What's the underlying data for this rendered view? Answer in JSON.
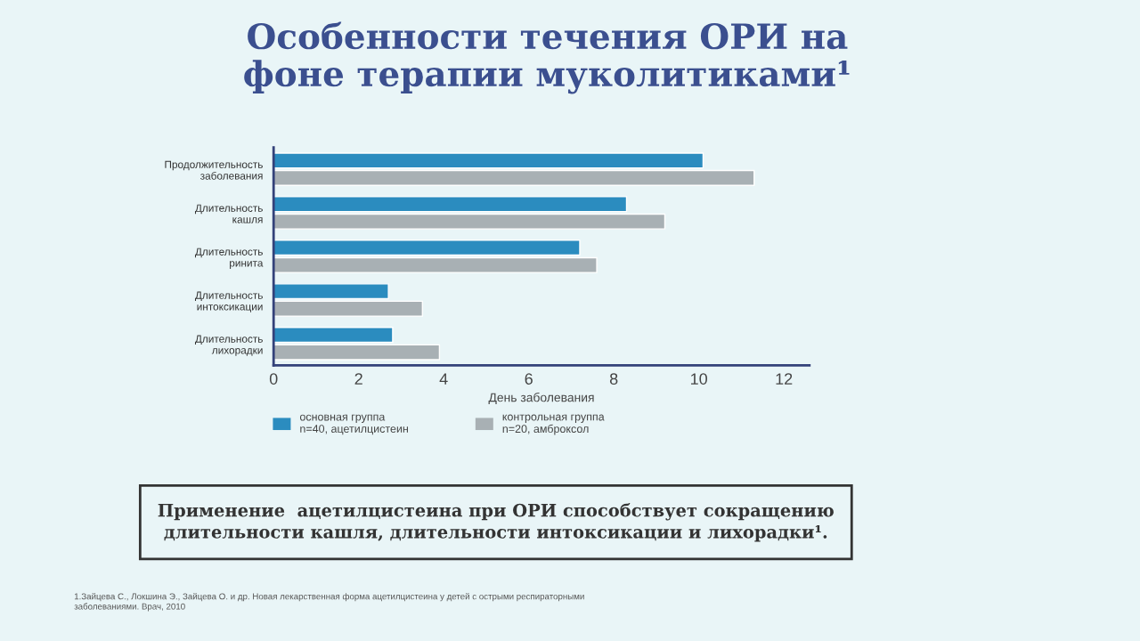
{
  "chart_data": {
    "type": "bar",
    "orientation": "horizontal",
    "title": "Особенности течения ОРИ на\nфоне терапии муколитиками¹",
    "categories": [
      "Продолжительность\nзаболевания",
      "Длительность\nкашля",
      "Длительность\nринита",
      "Длительность\nинтоксикации",
      "Длительность\nлихорадки"
    ],
    "series": [
      {
        "name": "основная группа\nn=40, ацетилцистеин",
        "color": "#2b8cbf",
        "values": [
          10.1,
          8.3,
          7.2,
          2.7,
          2.8
        ]
      },
      {
        "name": "контрольная группа\nn=20, амброксол",
        "color": "#a8b0b4",
        "values": [
          11.3,
          9.2,
          7.6,
          3.5,
          3.9
        ]
      }
    ],
    "xlabel": "День заболевания",
    "xlim": [
      0,
      12.6
    ],
    "xticks": [
      0,
      2,
      4,
      6,
      8,
      10,
      12
    ],
    "legend": "bottom",
    "annotations": [
      "Применение  ацетилцистеина при ОРИ способствует сокращению\nдлительности кашля, длительности интоксикации и лихорадки¹.",
      "1.Зайцева С., Локшина Э., Зайцева О. и др. Новая лекарственная форма ацетилцистеина у детей с острыми респираторными\nзаболеваниями. Врач, 2010"
    ]
  }
}
